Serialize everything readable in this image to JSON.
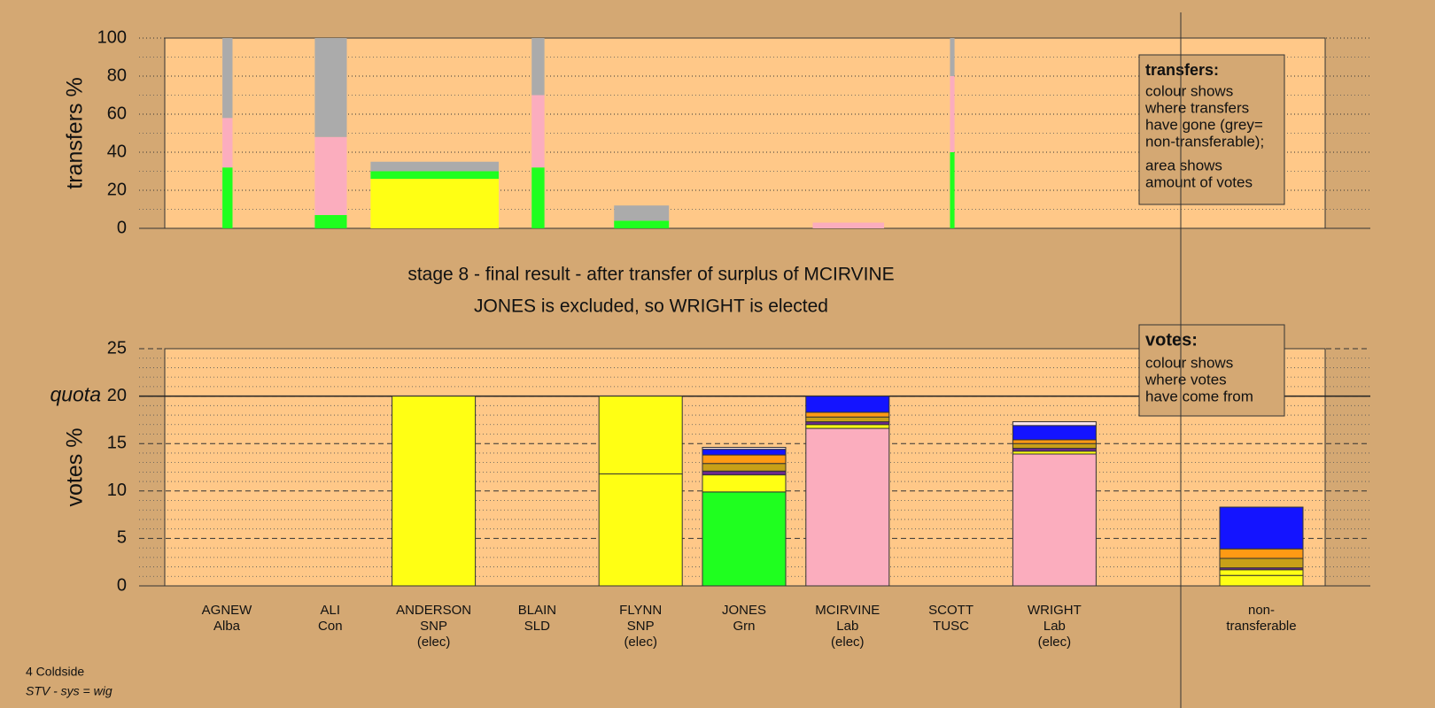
{
  "chart_data": [
    {
      "type": "bar",
      "ylabel": "transfers %",
      "ylim": [
        0,
        100
      ],
      "yticks": [
        0,
        20,
        40,
        60,
        80,
        100
      ],
      "grid": true,
      "xlim": [
        0,
        100
      ],
      "x": [
        4.97,
        12.93,
        17.74,
        31.62,
        38.72,
        55.84,
        67.67
      ],
      "widths": [
        0.87,
        2.76,
        11.04,
        1.1,
        4.73,
        6.15,
        0.39
      ],
      "series": [
        {
          "color": "#ffff14",
          "values": [
            0,
            0,
            26,
            0,
            0,
            0,
            0
          ]
        },
        {
          "color": "#1fff1f",
          "values": [
            32,
            7,
            4,
            32,
            4,
            0,
            40
          ]
        },
        {
          "color": "#fbadbe",
          "values": [
            26,
            41,
            0,
            38,
            0,
            3,
            40
          ]
        },
        {
          "color": "#ababab",
          "values": [
            42,
            52,
            5,
            30,
            8,
            0,
            20
          ]
        }
      ],
      "legend_title": "transfers:",
      "legend_text": [
        [
          "colour shows",
          "where transfers",
          "have gone (grey=",
          "non-transferable);"
        ],
        [
          "area shows",
          "amount of votes"
        ]
      ]
    },
    {
      "type": "bar",
      "ylabel": "votes %",
      "ylim": [
        0,
        25
      ],
      "yticks": [
        0,
        5,
        10,
        15,
        20,
        25
      ],
      "grid": true,
      "quota": 20,
      "quota_label": "quota",
      "subtitle": [
        "stage 8 - final result - after transfer of surplus of MCIRVINE",
        "JONES is excluded, so WRIGHT is elected"
      ],
      "categories": [
        [
          "AGNEW",
          "Alba"
        ],
        [
          "ALI",
          "Con"
        ],
        [
          "ANDERSON",
          "SNP",
          "(elec)"
        ],
        [
          "BLAIN",
          "SLD"
        ],
        [
          "FLYNN",
          "SNP",
          "(elec)"
        ],
        [
          "JONES",
          "Grn"
        ],
        [
          "MCIRVINE",
          "Lab",
          "(elec)"
        ],
        [
          "SCOTT",
          "TUSC"
        ],
        [
          "WRIGHT",
          "Lab",
          "(elec)"
        ],
        null,
        [
          "non-",
          "transferable"
        ]
      ],
      "series": [
        {
          "color": "#1fff1f",
          "values": [
            0,
            0,
            0,
            0,
            0,
            9.9,
            0,
            0,
            0,
            0,
            0
          ]
        },
        {
          "color": "#fbadbe",
          "values": [
            0,
            0,
            0,
            0,
            0,
            0,
            16.6,
            0,
            13.9,
            0,
            0
          ]
        },
        {
          "color": "#ffff14",
          "values": [
            0,
            0,
            20,
            0,
            11.8,
            1.8,
            0.4,
            0,
            0.3,
            0,
            1.1
          ]
        },
        {
          "color": "#ffff14",
          "values": [
            0,
            0,
            0,
            0,
            8.2,
            0,
            0,
            0,
            0,
            0,
            0.6
          ]
        },
        {
          "color": "#6a2a8a",
          "values": [
            0,
            0,
            0,
            0,
            0,
            0.4,
            0.3,
            0,
            0.3,
            0,
            0.2
          ]
        },
        {
          "color": "#c8a018",
          "values": [
            0,
            0,
            0,
            0,
            0,
            0.8,
            0.5,
            0,
            0.5,
            0,
            1
          ]
        },
        {
          "color": "#ff9a14",
          "values": [
            0,
            0,
            0,
            0,
            0,
            0.9,
            0.5,
            0,
            0.4,
            0,
            1
          ]
        },
        {
          "color": "#1414ff",
          "values": [
            0,
            0,
            0,
            0,
            0,
            0.6,
            1.7,
            0,
            1.5,
            0,
            4.4
          ]
        },
        {
          "color": "#fce4ec",
          "values": [
            0,
            0,
            0,
            0,
            0,
            0.2,
            0,
            0,
            0.4,
            0,
            0
          ]
        }
      ],
      "legend_title": "votes:",
      "legend_text": [
        [
          "colour shows",
          "where votes",
          "have come from"
        ]
      ]
    }
  ],
  "footer": [
    "4 Coldside",
    "STV - sys = wig"
  ]
}
